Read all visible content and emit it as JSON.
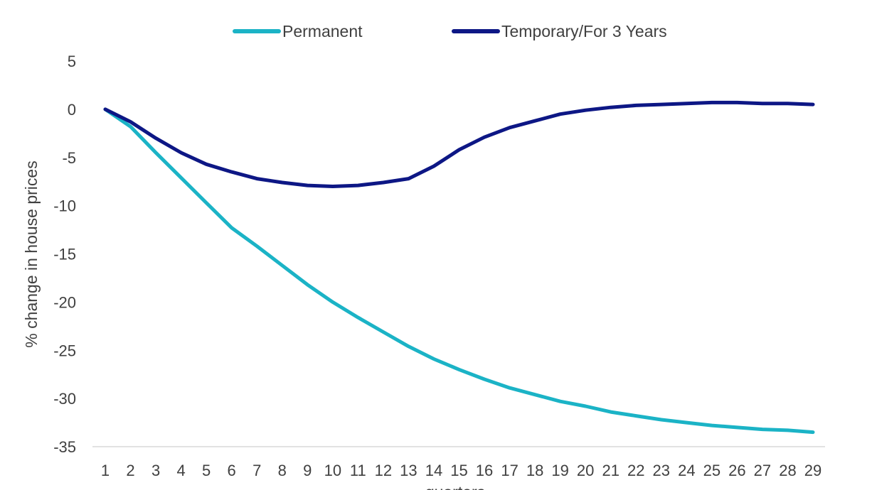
{
  "chart_data": {
    "type": "line",
    "title": "",
    "xlabel": "quarters",
    "ylabel": "% change in house prices",
    "x": [
      1,
      2,
      3,
      4,
      5,
      6,
      7,
      8,
      9,
      10,
      11,
      12,
      13,
      14,
      15,
      16,
      17,
      18,
      19,
      20,
      21,
      22,
      23,
      24,
      25,
      26,
      27,
      28,
      29
    ],
    "ylim": [
      -35,
      5
    ],
    "yticks": [
      5,
      0,
      -5,
      -10,
      -15,
      -20,
      -25,
      -30,
      -35
    ],
    "grid": false,
    "legend_position": "top",
    "series": [
      {
        "name": "Permanent",
        "color": "#1BB3C6",
        "values": [
          0,
          -1.8,
          -4.5,
          -7.1,
          -9.7,
          -12.3,
          -14.2,
          -16.2,
          -18.2,
          -20.0,
          -21.6,
          -23.1,
          -24.6,
          -25.9,
          -27.0,
          -28.0,
          -28.9,
          -29.6,
          -30.3,
          -30.8,
          -31.4,
          -31.8,
          -32.2,
          -32.5,
          -32.8,
          -33.0,
          -33.2,
          -33.3,
          -33.5
        ]
      },
      {
        "name": "Temporary/For 3 Years",
        "color": "#0D1785",
        "values": [
          0,
          -1.3,
          -3.0,
          -4.5,
          -5.7,
          -6.5,
          -7.2,
          -7.6,
          -7.9,
          -8.0,
          -7.9,
          -7.6,
          -7.2,
          -5.9,
          -4.2,
          -2.9,
          -1.9,
          -1.2,
          -0.5,
          -0.1,
          0.2,
          0.4,
          0.5,
          0.6,
          0.7,
          0.7,
          0.6,
          0.6,
          0.5
        ]
      }
    ]
  }
}
